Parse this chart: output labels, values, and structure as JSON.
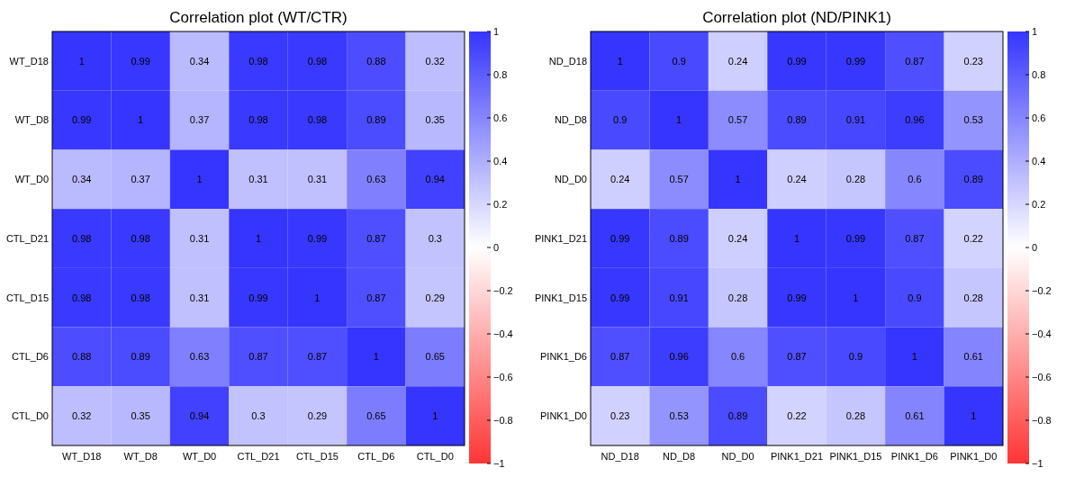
{
  "chart_data": [
    {
      "type": "heatmap",
      "data_labels": true,
      "title": "Correlation plot (WT/CTR)",
      "categories": [
        "WT_D18",
        "WT_D8",
        "WT_D0",
        "CTL_D21",
        "CTL_D15",
        "CTL_D6",
        "CTL_D0"
      ],
      "y_categories": [
        "WT_D18",
        "WT_D8",
        "WT_D0",
        "CTL_D21",
        "CTL_D15",
        "CTL_D6",
        "CTL_D0"
      ],
      "cells": [
        [
          1,
          0.99,
          0.34,
          0.98,
          0.98,
          0.88,
          0.32
        ],
        [
          0.99,
          1,
          0.37,
          0.98,
          0.98,
          0.89,
          0.35
        ],
        [
          0.34,
          0.37,
          1,
          0.31,
          0.31,
          0.63,
          0.94
        ],
        [
          0.98,
          0.98,
          0.31,
          1,
          0.99,
          0.87,
          0.3
        ],
        [
          0.98,
          0.98,
          0.31,
          0.99,
          1,
          0.87,
          0.29
        ],
        [
          0.88,
          0.89,
          0.63,
          0.87,
          0.87,
          1,
          0.65
        ],
        [
          0.32,
          0.35,
          0.94,
          0.3,
          0.29,
          0.65,
          1
        ]
      ],
      "clim": [
        -1,
        1
      ],
      "cticks": [
        {
          "value": -1,
          "label": "−1"
        },
        {
          "value": -0.8,
          "label": "−0.8"
        },
        {
          "value": -0.6,
          "label": "−0.6"
        },
        {
          "value": -0.4,
          "label": "−0.4"
        },
        {
          "value": -0.2,
          "label": "−0.2"
        },
        0,
        0.2,
        0.4,
        0.6,
        0.8,
        1
      ]
    },
    {
      "type": "heatmap",
      "data_labels": true,
      "title": "Correlation plot (ND/PINK1)",
      "categories": [
        "ND_D18",
        "ND_D8",
        "ND_D0",
        "PINK1_D21",
        "PINK1_D15",
        "PINK1_D6",
        "PINK1_D0"
      ],
      "y_categories": [
        "ND_D18",
        "ND_D8",
        "ND_D0",
        "PINK1_D21",
        "PINK1_D15",
        "PINK1_D6",
        "PINK1_D0"
      ],
      "cells": [
        [
          1,
          0.9,
          0.24,
          0.99,
          0.99,
          0.87,
          0.23
        ],
        [
          0.9,
          1,
          0.57,
          0.89,
          0.91,
          0.96,
          0.53
        ],
        [
          0.24,
          0.57,
          1,
          0.24,
          0.28,
          0.6,
          0.89
        ],
        [
          0.99,
          0.89,
          0.24,
          1,
          0.99,
          0.87,
          0.22
        ],
        [
          0.99,
          0.91,
          0.28,
          0.99,
          1,
          0.9,
          0.28
        ],
        [
          0.87,
          0.96,
          0.6,
          0.87,
          0.9,
          1,
          0.61
        ],
        [
          0.23,
          0.53,
          0.89,
          0.22,
          0.28,
          0.61,
          1
        ]
      ],
      "clim": [
        -1,
        1
      ],
      "cticks": [
        {
          "value": -1,
          "label": "−1"
        },
        {
          "value": -0.8,
          "label": "−0.8"
        },
        {
          "value": -0.6,
          "label": "−0.6"
        },
        {
          "value": -0.4,
          "label": "−0.4"
        },
        {
          "value": -0.2,
          "label": "−0.2"
        },
        0,
        0.2,
        0.4,
        0.6,
        0.8,
        1
      ]
    }
  ]
}
